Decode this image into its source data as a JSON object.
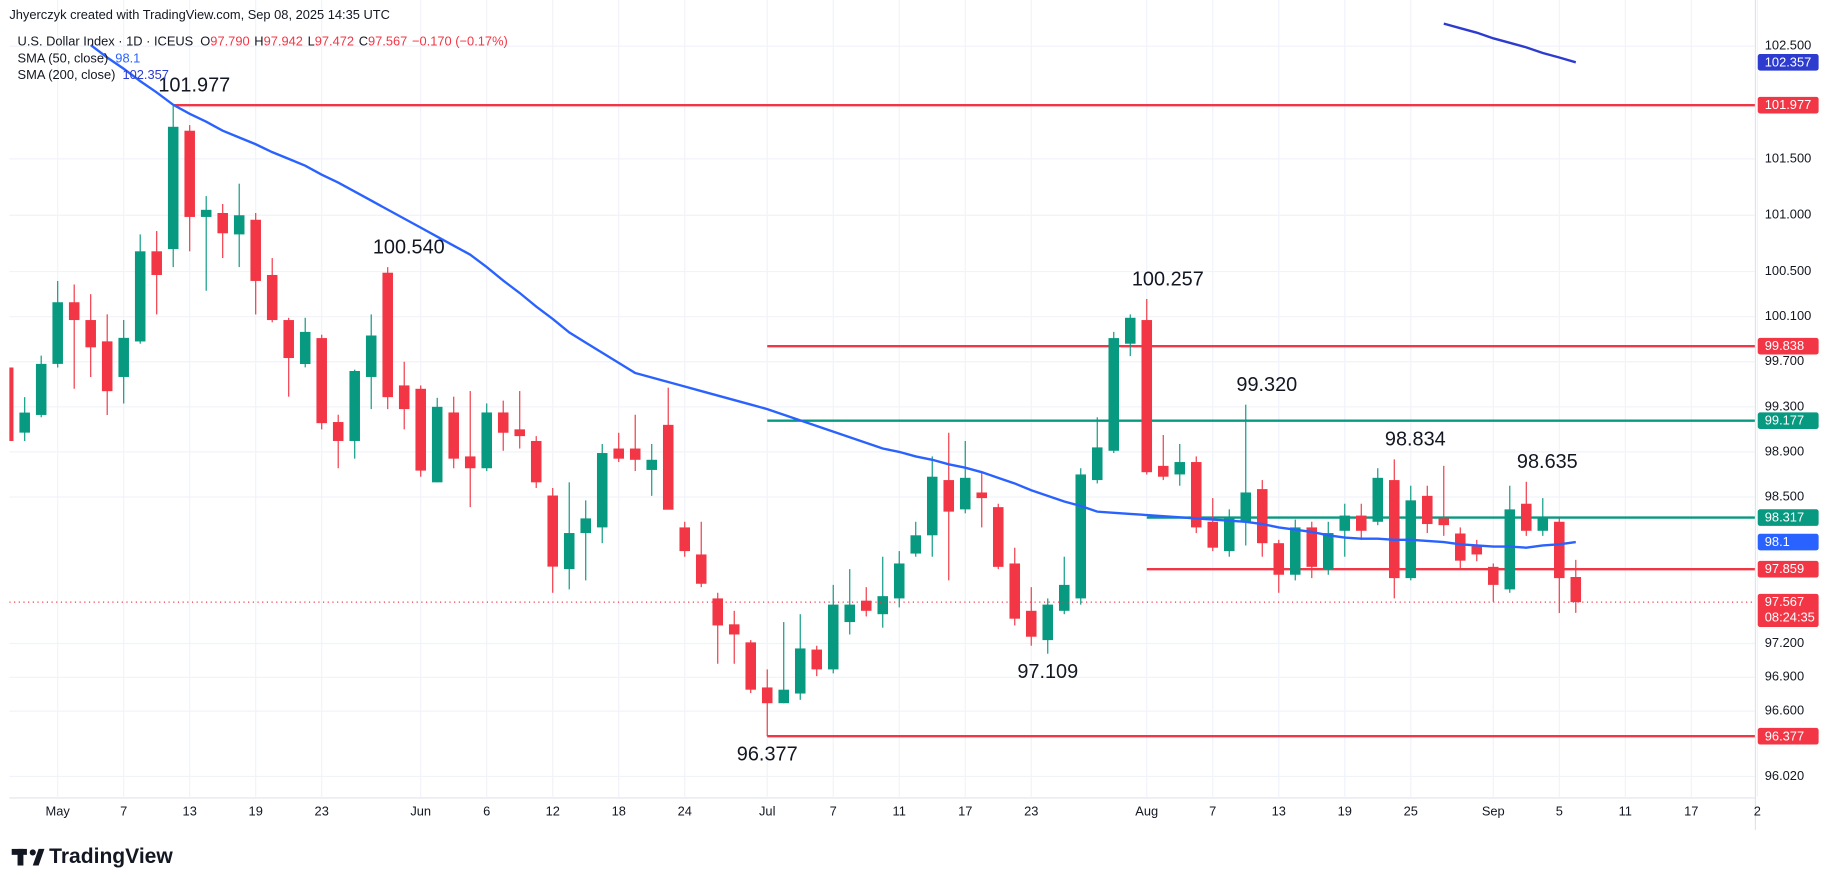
{
  "header": {
    "attribution": "Jhyerczyk created with TradingView.com, Sep 08, 2025 14:35 UTC",
    "footer": "TradingView"
  },
  "chart_data": {
    "type": "candlestick",
    "title": "U.S. Dollar Index · 1D · ICEUS",
    "quote": [
      {
        "key": "O",
        "value": "97.790"
      },
      {
        "key": "H",
        "value": "97.942"
      },
      {
        "key": "L",
        "value": "97.472"
      },
      {
        "key": "C",
        "value": "97.567"
      }
    ],
    "change": "−0.170 (−0.17%)",
    "categories": [
      null,
      null,
      null,
      "May",
      null,
      null,
      null,
      "7",
      null,
      null,
      null,
      "13",
      null,
      null,
      null,
      "19",
      null,
      null,
      null,
      "23",
      null,
      null,
      null,
      null,
      null,
      "Jun",
      null,
      null,
      null,
      "6",
      null,
      null,
      null,
      "12",
      null,
      null,
      null,
      "18",
      null,
      null,
      null,
      "24",
      null,
      null,
      null,
      null,
      "Jul",
      null,
      null,
      null,
      "7",
      null,
      null,
      null,
      "11",
      null,
      null,
      null,
      "17",
      null,
      null,
      null,
      "23",
      null,
      null,
      null,
      null,
      null,
      null,
      "Aug",
      null,
      null,
      null,
      "7",
      null,
      null,
      null,
      "13",
      null,
      null,
      null,
      "19",
      null,
      null,
      null,
      "25",
      null,
      null,
      null,
      null,
      "Sep",
      null,
      null,
      null,
      "5",
      null,
      null,
      null,
      "11",
      null,
      null,
      null,
      "17",
      null,
      null,
      null,
      "2"
    ],
    "open": [
      99.649,
      99.071,
      99.228,
      99.681,
      100.228,
      100.07,
      99.881,
      99.565,
      99.88,
      100.68,
      100.7,
      101.75,
      100.985,
      101.02,
      100.83,
      100.96,
      100.47,
      100.07,
      99.68,
      99.91,
      99.165,
      98.997,
      99.565,
      100.49,
      99.49,
      99.46,
      98.63,
      99.25,
      98.86,
      98.755,
      99.25,
      99.1,
      98.997,
      98.513,
      97.86,
      98.18,
      98.23,
      98.93,
      98.93,
      98.74,
      99.14,
      98.23,
      97.99,
      97.6,
      97.37,
      97.21,
      96.81,
      96.67,
      96.756,
      97.146,
      96.97,
      97.39,
      97.58,
      97.46,
      97.6,
      97.998,
      98.16,
      98.65,
      98.39,
      98.54,
      98.41,
      97.91,
      97.49,
      97.23,
      97.49,
      97.6,
      98.65,
      98.91,
      99.86,
      100.07,
      98.776,
      98.7,
      98.81,
      98.28,
      98.02,
      98.28,
      98.57,
      98.09,
      97.81,
      98.23,
      97.86,
      98.2,
      98.335,
      98.28,
      98.65,
      97.78,
      98.51,
      98.31,
      98.176,
      98.07,
      97.88,
      97.68,
      98.44,
      98.2,
      98.28,
      97.79,
      null,
      null,
      null,
      null,
      null,
      null,
      null,
      null,
      null,
      null,
      null
    ],
    "high": [
      99.67,
      99.386,
      99.754,
      100.417,
      100.386,
      100.3,
      100.12,
      100.07,
      100.83,
      100.86,
      101.977,
      101.8,
      101.17,
      101.1,
      101.28,
      101.02,
      100.62,
      100.09,
      100.09,
      99.94,
      99.23,
      99.63,
      100.12,
      100.54,
      99.7,
      99.49,
      99.38,
      99.39,
      99.44,
      99.33,
      99.355,
      99.44,
      99.04,
      98.58,
      98.63,
      98.47,
      98.97,
      99.07,
      99.23,
      98.97,
      99.47,
      98.28,
      98.28,
      97.65,
      97.49,
      97.23,
      96.97,
      97.39,
      97.46,
      97.18,
      97.72,
      97.86,
      97.7,
      97.97,
      98.02,
      98.28,
      98.86,
      99.07,
      98.997,
      98.72,
      98.44,
      98.05,
      97.7,
      97.6,
      97.97,
      98.755,
      99.207,
      99.965,
      100.12,
      100.257,
      99.05,
      98.97,
      98.86,
      98.49,
      98.39,
      99.32,
      98.65,
      98.12,
      98.3,
      98.28,
      98.28,
      98.44,
      98.44,
      98.755,
      98.834,
      98.6,
      98.6,
      98.776,
      98.23,
      98.12,
      97.91,
      98.6,
      98.635,
      98.49,
      98.31,
      97.942,
      null,
      null,
      null,
      null,
      null,
      null,
      null,
      null,
      null,
      null,
      null
    ],
    "low": [
      98.99,
      98.997,
      99.207,
      99.649,
      99.46,
      99.565,
      99.228,
      99.33,
      99.86,
      100.12,
      100.54,
      100.68,
      100.33,
      100.62,
      100.54,
      100.12,
      100.05,
      99.39,
      99.65,
      99.1,
      98.755,
      98.84,
      99.28,
      99.28,
      99.1,
      98.68,
      98.63,
      98.755,
      98.41,
      98.73,
      98.91,
      98.93,
      98.58,
      97.65,
      97.68,
      97.76,
      98.09,
      98.81,
      98.73,
      98.51,
      98.39,
      97.97,
      97.7,
      97.02,
      97.02,
      96.76,
      96.377,
      96.67,
      96.7,
      96.91,
      96.935,
      97.28,
      97.44,
      97.34,
      97.52,
      97.97,
      97.97,
      97.76,
      98.355,
      98.23,
      97.86,
      97.36,
      97.18,
      97.109,
      97.46,
      97.545,
      98.62,
      98.89,
      99.75,
      98.7,
      98.65,
      98.6,
      98.18,
      98.02,
      97.97,
      98.07,
      97.97,
      97.65,
      97.76,
      97.78,
      97.81,
      97.97,
      98.12,
      98.25,
      97.6,
      97.76,
      98.18,
      98.155,
      97.86,
      97.93,
      97.57,
      97.65,
      98.155,
      98.155,
      97.47,
      97.472,
      null,
      null,
      null,
      null,
      null,
      null,
      null,
      null,
      null,
      null,
      null
    ],
    "close": [
      98.997,
      99.249,
      99.681,
      100.228,
      100.07,
      99.828,
      99.439,
      99.912,
      100.68,
      100.47,
      101.785,
      100.985,
      101.048,
      100.84,
      101.0,
      100.417,
      100.07,
      99.733,
      99.965,
      99.155,
      98.997,
      99.618,
      99.933,
      99.386,
      99.28,
      98.734,
      99.3,
      98.84,
      98.755,
      99.25,
      99.07,
      99.04,
      98.63,
      97.882,
      98.18,
      98.31,
      98.89,
      98.84,
      98.83,
      98.83,
      98.387,
      98.02,
      97.73,
      97.36,
      97.28,
      96.79,
      96.67,
      96.79,
      97.156,
      96.97,
      97.545,
      97.545,
      97.49,
      97.62,
      97.91,
      98.16,
      98.68,
      98.37,
      98.67,
      98.49,
      97.88,
      97.42,
      97.26,
      97.545,
      97.72,
      98.7,
      98.94,
      99.91,
      100.09,
      98.72,
      98.68,
      98.81,
      98.23,
      98.05,
      98.31,
      98.54,
      98.09,
      97.81,
      98.23,
      97.88,
      98.18,
      98.335,
      98.2,
      98.67,
      97.78,
      98.47,
      98.26,
      98.25,
      97.935,
      97.99,
      97.72,
      98.39,
      98.2,
      98.31,
      97.78,
      97.567,
      null,
      null,
      null,
      null,
      null,
      null,
      null,
      null,
      null,
      null,
      null
    ],
    "up_color": "#089981",
    "down_color": "#f23645",
    "series": [
      {
        "name": "SMA (50, close)",
        "color": "#2962ff",
        "values": [
          null,
          null,
          null,
          null,
          null,
          102.51,
          102.4,
          102.3,
          102.19,
          102.09,
          101.98,
          101.9,
          101.83,
          101.75,
          101.69,
          101.63,
          101.56,
          101.5,
          101.44,
          101.36,
          101.29,
          101.21,
          101.13,
          101.05,
          100.97,
          100.89,
          100.81,
          100.73,
          100.65,
          100.54,
          100.42,
          100.31,
          100.19,
          100.08,
          99.96,
          99.87,
          99.78,
          99.69,
          99.6,
          99.56,
          99.52,
          99.48,
          99.44,
          99.4,
          99.36,
          99.32,
          99.28,
          99.23,
          99.18,
          99.13,
          99.08,
          99.03,
          98.98,
          98.93,
          98.9,
          98.86,
          98.83,
          98.79,
          98.76,
          98.72,
          98.67,
          98.62,
          98.56,
          98.51,
          98.46,
          98.42,
          98.37,
          98.36,
          98.35,
          98.34,
          98.33,
          98.32,
          98.31,
          98.3,
          98.29,
          98.28,
          98.26,
          98.23,
          98.21,
          98.19,
          98.16,
          98.14,
          98.13,
          98.13,
          98.12,
          98.12,
          98.11,
          98.1,
          98.08,
          98.07,
          98.06,
          98.06,
          98.05,
          98.07,
          98.08,
          98.1,
          null,
          null,
          null,
          null,
          null,
          null,
          null,
          null,
          null,
          null,
          null
        ]
      },
      {
        "name": "SMA (200, close)",
        "color": "#2d3ccf",
        "values": [
          null,
          null,
          null,
          null,
          null,
          null,
          null,
          null,
          null,
          null,
          null,
          null,
          null,
          null,
          null,
          null,
          null,
          null,
          null,
          null,
          null,
          null,
          null,
          null,
          null,
          null,
          null,
          null,
          null,
          null,
          null,
          null,
          null,
          null,
          null,
          null,
          null,
          null,
          null,
          null,
          null,
          null,
          null,
          null,
          null,
          null,
          null,
          null,
          null,
          null,
          null,
          null,
          null,
          null,
          null,
          null,
          null,
          null,
          null,
          null,
          null,
          null,
          null,
          null,
          null,
          null,
          null,
          null,
          null,
          null,
          null,
          null,
          null,
          null,
          null,
          null,
          null,
          null,
          null,
          null,
          null,
          null,
          null,
          null,
          null,
          null,
          null,
          102.7,
          102.66,
          102.62,
          102.57,
          102.53,
          102.49,
          102.44,
          102.4,
          102.357,
          null,
          null,
          null,
          null,
          null,
          null,
          null,
          null,
          null,
          null,
          null
        ]
      }
    ],
    "hlines": [
      {
        "value": 101.977,
        "color": "#f23645",
        "from": 10
      },
      {
        "value": 99.838,
        "color": "#f23645",
        "from": 46
      },
      {
        "value": 99.177,
        "color": "#089981",
        "from": 46
      },
      {
        "value": 98.317,
        "color": "#089981",
        "from": 69
      },
      {
        "value": 97.859,
        "color": "#f23645",
        "from": 69
      },
      {
        "value": 96.377,
        "color": "#f23645",
        "from": 46
      }
    ],
    "annotations": [
      {
        "value": 101.977,
        "index": 10
      },
      {
        "value": 100.54,
        "label": "100.540",
        "index": 23
      },
      {
        "value": 100.257,
        "index": 69
      },
      {
        "value": 99.32,
        "label": "99.320",
        "index": 75
      },
      {
        "value": 98.834,
        "index": 84
      },
      {
        "value": 98.635,
        "index": 92
      },
      {
        "value": 97.109,
        "index": 63
      },
      {
        "value": 96.377,
        "index": 46
      }
    ],
    "countdown": "08:24:35",
    "ylim": [
      95.84,
      102.91
    ],
    "yticks": [
      {
        "value": 102.5,
        "label": "102.500"
      },
      {
        "value": 101.5,
        "label": "101.500"
      },
      {
        "value": 101,
        "label": "101.000"
      },
      {
        "value": 100.5,
        "label": "100.500"
      },
      {
        "value": 100.1,
        "label": "100.100"
      },
      {
        "value": 99.7,
        "label": "99.700"
      },
      {
        "value": 99.3,
        "label": "99.300"
      },
      {
        "value": 98.9,
        "label": "98.900"
      },
      {
        "value": 98.5,
        "label": "98.500"
      },
      {
        "value": 97.2,
        "label": "97.200"
      },
      {
        "value": 96.9,
        "label": "96.900"
      },
      {
        "value": 96.6,
        "label": "96.600"
      },
      {
        "value": 96.02,
        "label": "96.020"
      }
    ],
    "grid": true
  }
}
